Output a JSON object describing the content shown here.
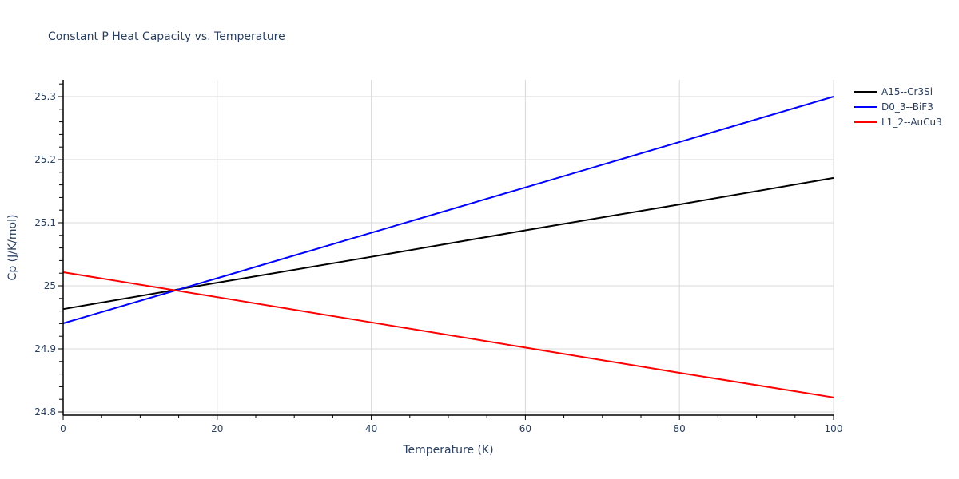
{
  "chart_data": {
    "type": "line",
    "title": "Constant P Heat Capacity vs. Temperature",
    "xlabel": "Temperature (K)",
    "ylabel": "Cp (J/K/mol)",
    "xlim": [
      0,
      100
    ],
    "ylim": [
      24.795,
      25.328
    ],
    "x_ticks": [
      0,
      20,
      40,
      60,
      80,
      100
    ],
    "x_tick_labels": [
      "0",
      "20",
      "40",
      "60",
      "80",
      "100"
    ],
    "x_minor_step": 5,
    "y_ticks": [
      24.8,
      24.9,
      25.0,
      25.1,
      25.2,
      25.3
    ],
    "y_tick_labels": [
      "24.8",
      "24.9",
      "25",
      "25.1",
      "25.2",
      "25.3"
    ],
    "y_minor_step": 0.02,
    "grid": true,
    "legend_position": "top-right-outside",
    "x": [
      0,
      20,
      40,
      60,
      80,
      100
    ],
    "series": [
      {
        "name": "A15--Cr3Si",
        "color": "#000000",
        "values": [
          24.963,
          25.005,
          25.046,
          25.088,
          25.129,
          25.171
        ]
      },
      {
        "name": "D0_3--BiF3",
        "color": "#0000ff",
        "values": [
          24.9405,
          25.012,
          25.084,
          25.156,
          25.228,
          25.3
        ]
      },
      {
        "name": "L1_2--AuCu3",
        "color": "#ff0000",
        "values": [
          25.0215,
          24.982,
          24.942,
          24.902,
          24.862,
          24.823
        ]
      }
    ]
  }
}
